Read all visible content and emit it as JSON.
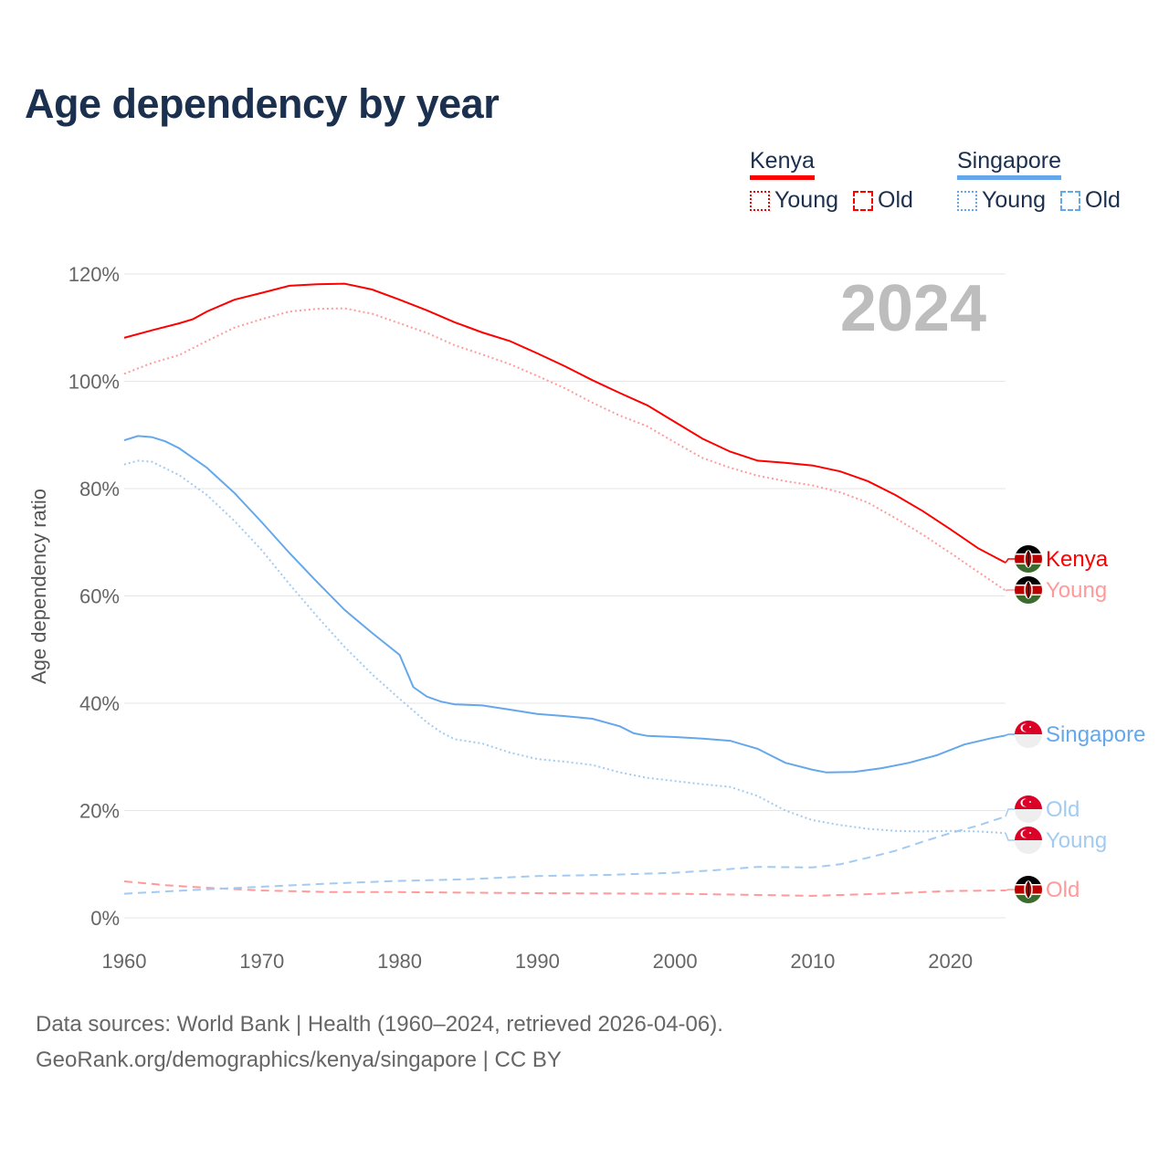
{
  "title": "Age dependency by year",
  "legend": {
    "groups": [
      {
        "name": "Kenya",
        "color": "#ff0000",
        "items": [
          "Young",
          "Old"
        ]
      },
      {
        "name": "Singapore",
        "color": "#64a8eb",
        "items": [
          "Young",
          "Old"
        ]
      }
    ]
  },
  "footer": {
    "line1": "Data sources: World Bank | Health (1960–2024, retrieved 2026-04-06).",
    "line2": "GeoRank.org/demographics/kenya/singapore | CC BY"
  },
  "chart_data": {
    "type": "line",
    "title": "Age dependency by year",
    "xlabel": "",
    "ylabel": "Age dependency ratio",
    "xlim": [
      1960,
      2024
    ],
    "ylim": [
      0,
      120
    ],
    "x_ticks": [
      "1960",
      "1970",
      "1980",
      "1990",
      "2000",
      "2010",
      "2020"
    ],
    "y_ticks": [
      "0%",
      "20%",
      "40%",
      "60%",
      "80%",
      "100%",
      "120%"
    ],
    "grid": true,
    "year_watermark": "2024",
    "series": [
      {
        "name": "Kenya",
        "end_label": "Kenya",
        "country": "Kenya",
        "style": "solid",
        "color": "#ff0000",
        "points": [
          [
            1960,
            108.1
          ],
          [
            1962,
            109.5
          ],
          [
            1964,
            110.8
          ],
          [
            1965,
            111.6
          ],
          [
            1966,
            113
          ],
          [
            1968,
            115.2
          ],
          [
            1970,
            116.5
          ],
          [
            1972,
            117.8
          ],
          [
            1974,
            118.1
          ],
          [
            1976,
            118.2
          ],
          [
            1978,
            117.1
          ],
          [
            1980,
            115.2
          ],
          [
            1982,
            113.2
          ],
          [
            1984,
            111
          ],
          [
            1986,
            109.1
          ],
          [
            1988,
            107.5
          ],
          [
            1990,
            105.2
          ],
          [
            1992,
            102.8
          ],
          [
            1994,
            100.2
          ],
          [
            1996,
            97.8
          ],
          [
            1998,
            95.5
          ],
          [
            2000,
            92.4
          ],
          [
            2002,
            89.3
          ],
          [
            2004,
            86.9
          ],
          [
            2006,
            85.2
          ],
          [
            2008,
            84.8
          ],
          [
            2010,
            84.3
          ],
          [
            2012,
            83.2
          ],
          [
            2014,
            81.4
          ],
          [
            2016,
            78.8
          ],
          [
            2018,
            75.8
          ],
          [
            2020,
            72.4
          ],
          [
            2022,
            68.9
          ],
          [
            2024,
            66.2
          ]
        ]
      },
      {
        "name": "Kenya Young",
        "end_label": "Young",
        "country": "Kenya",
        "style": "dotted",
        "color": "#ff9a9a",
        "points": [
          [
            1960,
            101.4
          ],
          [
            1962,
            103.4
          ],
          [
            1964,
            104.9
          ],
          [
            1966,
            107.5
          ],
          [
            1968,
            110
          ],
          [
            1970,
            111.6
          ],
          [
            1972,
            113
          ],
          [
            1974,
            113.5
          ],
          [
            1976,
            113.6
          ],
          [
            1978,
            112.6
          ],
          [
            1980,
            110.8
          ],
          [
            1982,
            109
          ],
          [
            1984,
            106.7
          ],
          [
            1986,
            105
          ],
          [
            1988,
            103.2
          ],
          [
            1990,
            101
          ],
          [
            1992,
            98.7
          ],
          [
            1994,
            96
          ],
          [
            1996,
            93.6
          ],
          [
            1998,
            91.6
          ],
          [
            2000,
            88.6
          ],
          [
            2002,
            85.7
          ],
          [
            2004,
            83.9
          ],
          [
            2006,
            82.4
          ],
          [
            2008,
            81.4
          ],
          [
            2010,
            80.6
          ],
          [
            2012,
            79.3
          ],
          [
            2014,
            77.4
          ],
          [
            2016,
            74.5
          ],
          [
            2018,
            71.4
          ],
          [
            2020,
            68
          ],
          [
            2022,
            64.5
          ],
          [
            2024,
            61
          ]
        ]
      },
      {
        "name": "Kenya Old",
        "end_label": "Old",
        "country": "Kenya",
        "style": "dashed",
        "color": "#ff9a9a",
        "points": [
          [
            1960,
            6.8
          ],
          [
            1963,
            6.1
          ],
          [
            1966,
            5.6
          ],
          [
            1970,
            5.1
          ],
          [
            1975,
            4.8
          ],
          [
            1980,
            4.8
          ],
          [
            1990,
            4.6
          ],
          [
            2000,
            4.5
          ],
          [
            2005,
            4.3
          ],
          [
            2010,
            4.1
          ],
          [
            2015,
            4.5
          ],
          [
            2020,
            5
          ],
          [
            2024,
            5.1
          ]
        ]
      },
      {
        "name": "Singapore",
        "end_label": "Singapore",
        "country": "Singapore",
        "style": "solid",
        "color": "#64a8eb",
        "points": [
          [
            1960,
            89
          ],
          [
            1961,
            89.8
          ],
          [
            1962,
            89.6
          ],
          [
            1963,
            88.8
          ],
          [
            1964,
            87.5
          ],
          [
            1966,
            83.9
          ],
          [
            1968,
            79.2
          ],
          [
            1970,
            73.7
          ],
          [
            1972,
            68
          ],
          [
            1974,
            62.6
          ],
          [
            1976,
            57.4
          ],
          [
            1978,
            53.1
          ],
          [
            1980,
            49
          ],
          [
            1981,
            43
          ],
          [
            1982,
            41.2
          ],
          [
            1983,
            40.3
          ],
          [
            1984,
            39.8
          ],
          [
            1986,
            39.6
          ],
          [
            1988,
            38.8
          ],
          [
            1990,
            38
          ],
          [
            1992,
            37.6
          ],
          [
            1994,
            37.1
          ],
          [
            1996,
            35.7
          ],
          [
            1997,
            34.4
          ],
          [
            1998,
            33.9
          ],
          [
            2000,
            33.7
          ],
          [
            2002,
            33.4
          ],
          [
            2004,
            33
          ],
          [
            2006,
            31.5
          ],
          [
            2008,
            28.9
          ],
          [
            2010,
            27.6
          ],
          [
            2011,
            27.1
          ],
          [
            2013,
            27.2
          ],
          [
            2015,
            27.9
          ],
          [
            2017,
            28.9
          ],
          [
            2019,
            30.3
          ],
          [
            2021,
            32.3
          ],
          [
            2023,
            33.5
          ],
          [
            2024,
            34
          ]
        ]
      },
      {
        "name": "Singapore Old",
        "end_label": "Old",
        "country": "Singapore",
        "style": "dashed",
        "color": "#a3cbf2",
        "points": [
          [
            1960,
            4.5
          ],
          [
            1965,
            5.2
          ],
          [
            1970,
            5.8
          ],
          [
            1975,
            6.4
          ],
          [
            1980,
            6.9
          ],
          [
            1985,
            7.2
          ],
          [
            1990,
            7.8
          ],
          [
            1995,
            8
          ],
          [
            2000,
            8.4
          ],
          [
            2003,
            8.9
          ],
          [
            2006,
            9.5
          ],
          [
            2010,
            9.4
          ],
          [
            2012,
            10
          ],
          [
            2014,
            11.2
          ],
          [
            2016,
            12.5
          ],
          [
            2018,
            14.2
          ],
          [
            2020,
            15.8
          ],
          [
            2022,
            17.2
          ],
          [
            2024,
            18.9
          ]
        ]
      },
      {
        "name": "Singapore Young",
        "end_label": "Young",
        "country": "Singapore",
        "style": "dotted",
        "color": "#a3cbf2",
        "points": [
          [
            1960,
            84.5
          ],
          [
            1961,
            85.2
          ],
          [
            1962,
            85
          ],
          [
            1964,
            82.5
          ],
          [
            1966,
            78.8
          ],
          [
            1968,
            74
          ],
          [
            1970,
            68.5
          ],
          [
            1972,
            62.2
          ],
          [
            1974,
            56.2
          ],
          [
            1976,
            50.5
          ],
          [
            1978,
            45.4
          ],
          [
            1980,
            40.8
          ],
          [
            1982,
            36.4
          ],
          [
            1983,
            34.6
          ],
          [
            1984,
            33.3
          ],
          [
            1986,
            32.5
          ],
          [
            1988,
            30.8
          ],
          [
            1990,
            29.6
          ],
          [
            1992,
            29.1
          ],
          [
            1994,
            28.5
          ],
          [
            1996,
            27.1
          ],
          [
            1998,
            26.1
          ],
          [
            2000,
            25.5
          ],
          [
            2002,
            24.9
          ],
          [
            2004,
            24.4
          ],
          [
            2006,
            22.7
          ],
          [
            2008,
            20
          ],
          [
            2010,
            18.2
          ],
          [
            2012,
            17.3
          ],
          [
            2014,
            16.6
          ],
          [
            2016,
            16.2
          ],
          [
            2018,
            16.1
          ],
          [
            2020,
            16.2
          ],
          [
            2022,
            16.1
          ],
          [
            2024,
            15.8
          ]
        ]
      }
    ]
  }
}
